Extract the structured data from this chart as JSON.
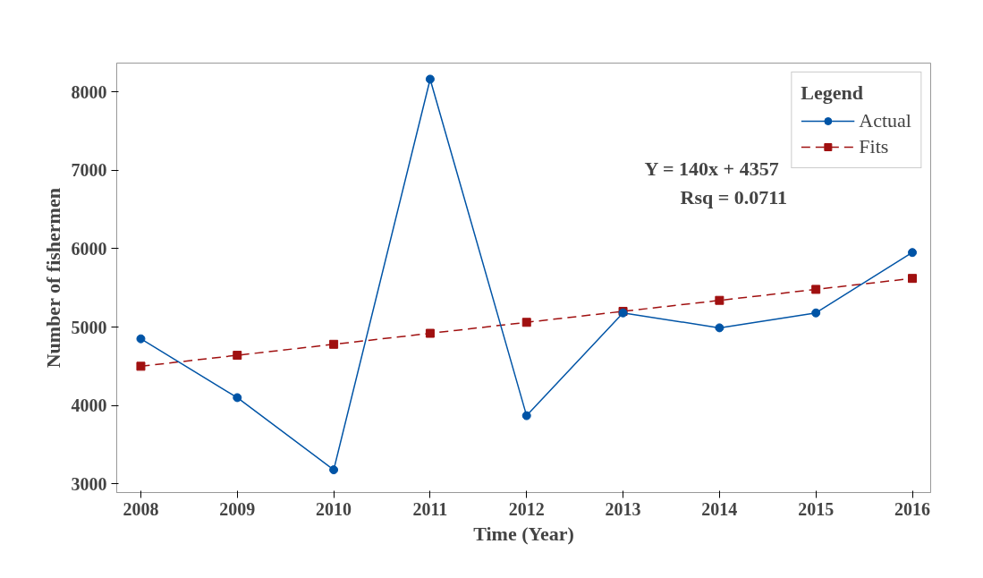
{
  "chart_data": {
    "type": "line",
    "xlabel": "Time (Year)",
    "ylabel": "Number of fishermen",
    "legend_title": "Legend",
    "x": [
      2008,
      2009,
      2010,
      2011,
      2012,
      2013,
      2014,
      2015,
      2016
    ],
    "series": [
      {
        "name": "Actual",
        "color": "#0054a6",
        "marker": "circle",
        "line_style": "solid",
        "values": [
          4850,
          4100,
          3180,
          8160,
          3870,
          5180,
          4990,
          5180,
          5950
        ]
      },
      {
        "name": "Fits",
        "color": "#a01010",
        "marker": "square",
        "line_style": "dashed",
        "values": [
          4500,
          4640,
          4780,
          4920,
          5060,
          5200,
          5340,
          5480,
          5620
        ]
      }
    ],
    "annotations": [
      "Y = 140x + 4357",
      "Rsq = 0.0711"
    ],
    "xlim": [
      2007.75,
      2016.19
    ],
    "ylim": [
      2890,
      8365
    ],
    "xticks": [
      2008,
      2009,
      2010,
      2011,
      2012,
      2013,
      2014,
      2015,
      2016
    ],
    "yticks": [
      3000,
      4000,
      5000,
      6000,
      7000,
      8000
    ],
    "grid": false,
    "legend": "top right"
  }
}
